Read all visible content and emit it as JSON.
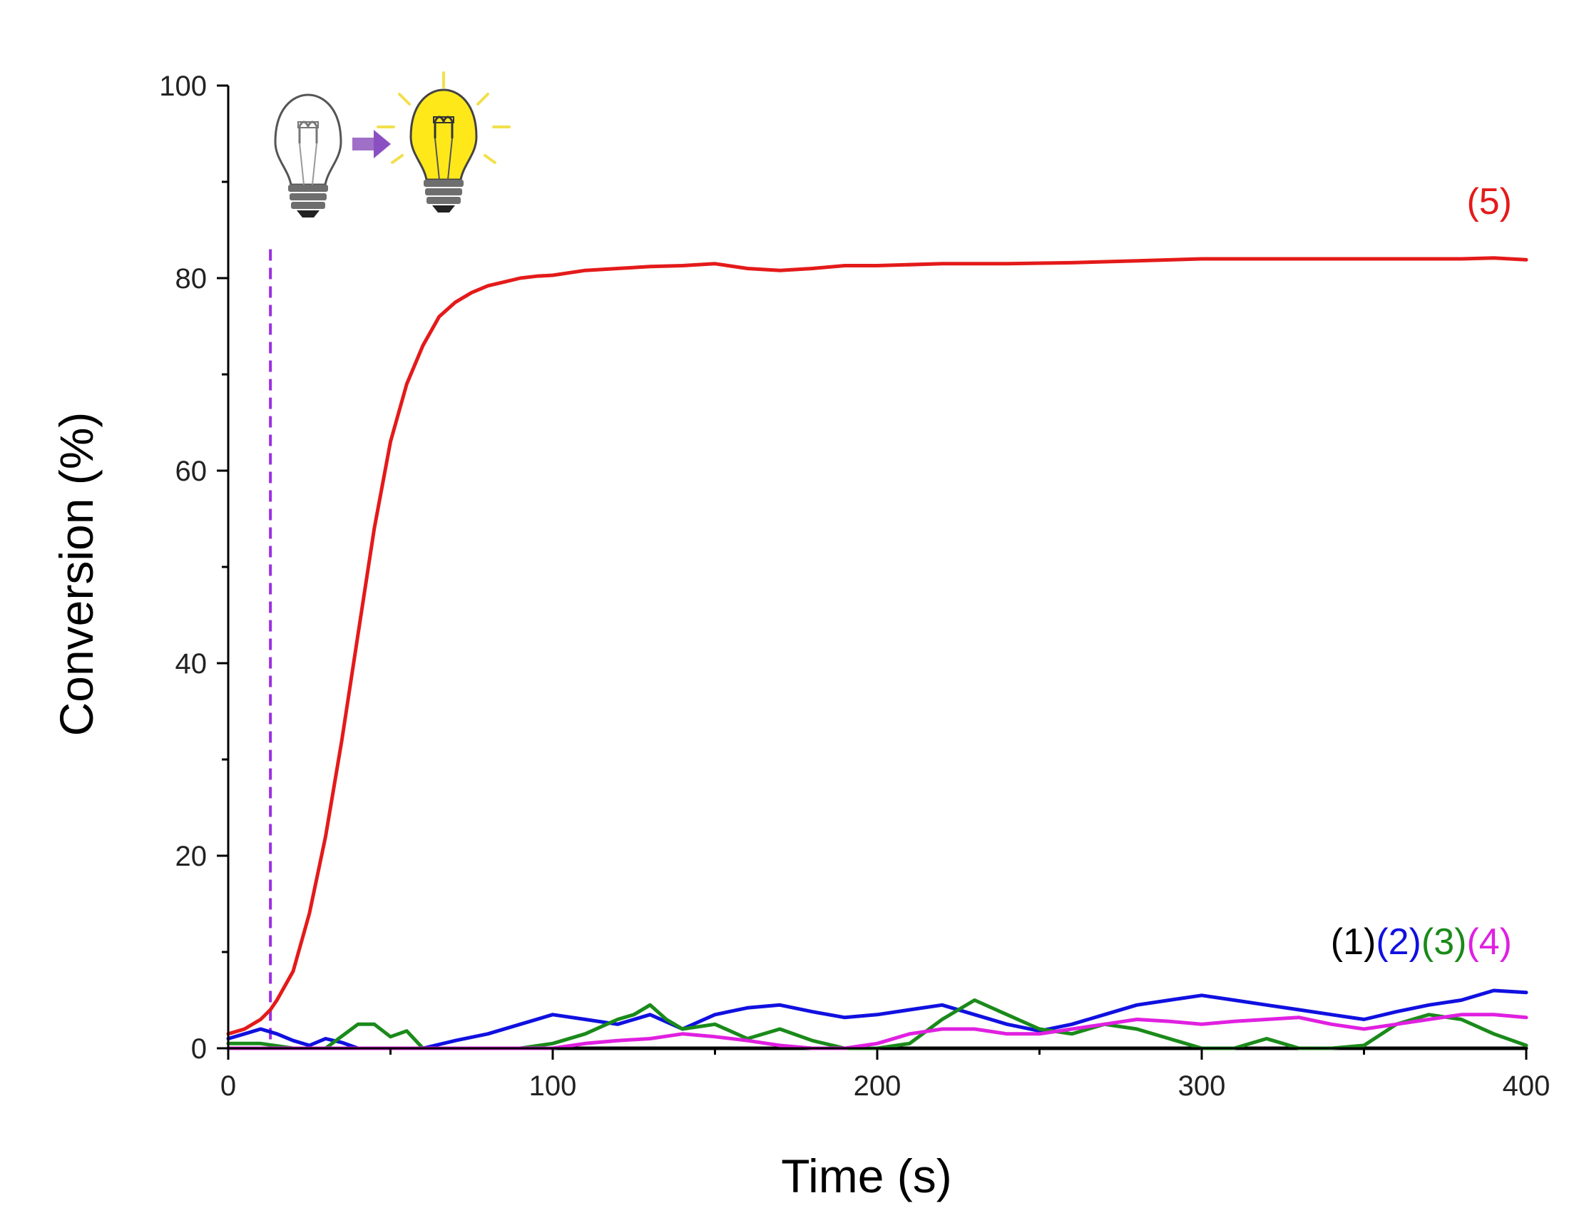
{
  "chart_data": {
    "type": "line",
    "xlabel": "Time (s)",
    "ylabel": "Conversion (%)",
    "xlim": [
      0,
      400
    ],
    "ylim": [
      0,
      100
    ],
    "x_ticks": [
      0,
      100,
      200,
      300,
      400
    ],
    "y_ticks": [
      0,
      20,
      40,
      60,
      80,
      100
    ],
    "grid": false,
    "light_on_time": 13,
    "light_on_line_color": "#9b30e0",
    "annotation_icons": [
      "light-bulb-off-icon",
      "arrow-right-icon",
      "light-bulb-on-icon"
    ],
    "series": [
      {
        "name": "(1)",
        "color": "#000000",
        "x": [
          0,
          100,
          200,
          300,
          400
        ],
        "values": [
          0,
          0,
          0,
          0,
          0
        ]
      },
      {
        "name": "(2)",
        "color": "#1010e0",
        "x": [
          0,
          5,
          10,
          15,
          20,
          25,
          30,
          35,
          40,
          50,
          60,
          70,
          80,
          90,
          100,
          110,
          120,
          130,
          140,
          150,
          160,
          170,
          180,
          190,
          200,
          210,
          220,
          230,
          240,
          250,
          260,
          270,
          280,
          290,
          300,
          310,
          320,
          330,
          340,
          350,
          360,
          370,
          380,
          390,
          400
        ],
        "values": [
          1.0,
          1.5,
          2.0,
          1.5,
          0.8,
          0.3,
          1.0,
          0.6,
          0.0,
          0.0,
          0.0,
          0.8,
          1.5,
          2.5,
          3.5,
          3.0,
          2.5,
          3.5,
          2.0,
          3.5,
          4.2,
          4.5,
          3.8,
          3.2,
          3.5,
          4.0,
          4.5,
          3.5,
          2.5,
          1.8,
          2.5,
          3.5,
          4.5,
          5.0,
          5.5,
          5.0,
          4.5,
          4.0,
          3.5,
          3.0,
          3.8,
          4.5,
          5.0,
          6.0,
          5.8
        ]
      },
      {
        "name": "(3)",
        "color": "#1a8a1a",
        "x": [
          0,
          10,
          20,
          30,
          40,
          45,
          50,
          55,
          60,
          70,
          80,
          90,
          100,
          110,
          120,
          125,
          130,
          135,
          140,
          150,
          160,
          170,
          180,
          190,
          200,
          210,
          220,
          230,
          240,
          250,
          260,
          270,
          280,
          290,
          300,
          310,
          320,
          330,
          340,
          350,
          360,
          370,
          380,
          390,
          400
        ],
        "values": [
          0.5,
          0.5,
          0.0,
          0.0,
          2.5,
          2.5,
          1.2,
          1.8,
          0.0,
          0.0,
          0.0,
          0.0,
          0.5,
          1.5,
          3.0,
          3.5,
          4.5,
          3.0,
          2.0,
          2.5,
          1.0,
          2.0,
          0.8,
          0.0,
          0.0,
          0.5,
          3.0,
          5.0,
          3.5,
          2.0,
          1.5,
          2.5,
          2.0,
          1.0,
          0.0,
          0.0,
          1.0,
          0.0,
          0.0,
          0.3,
          2.5,
          3.5,
          3.0,
          1.5,
          0.3
        ]
      },
      {
        "name": "(4)",
        "color": "#e020e0",
        "x": [
          0,
          100,
          110,
          120,
          130,
          140,
          150,
          160,
          170,
          180,
          190,
          200,
          210,
          220,
          230,
          240,
          250,
          260,
          270,
          280,
          290,
          300,
          310,
          320,
          330,
          340,
          350,
          360,
          370,
          380,
          390,
          400
        ],
        "values": [
          0,
          0,
          0.5,
          0.8,
          1.0,
          1.5,
          1.2,
          0.8,
          0.3,
          0.0,
          0.0,
          0.5,
          1.5,
          2.0,
          2.0,
          1.5,
          1.5,
          2.0,
          2.5,
          3.0,
          2.8,
          2.5,
          2.8,
          3.0,
          3.2,
          2.5,
          2.0,
          2.5,
          3.0,
          3.5,
          3.5,
          3.2
        ]
      },
      {
        "name": "(5)",
        "color": "#e41a1a",
        "x": [
          0,
          5,
          10,
          13,
          15,
          20,
          25,
          30,
          35,
          40,
          45,
          50,
          55,
          60,
          65,
          70,
          75,
          80,
          85,
          90,
          95,
          100,
          110,
          120,
          130,
          140,
          150,
          160,
          170,
          180,
          190,
          200,
          220,
          240,
          260,
          280,
          300,
          320,
          340,
          360,
          380,
          390,
          400
        ],
        "values": [
          1.5,
          2.0,
          3.0,
          4.0,
          5.0,
          8.0,
          14.0,
          22.0,
          32.0,
          43.0,
          54.0,
          63.0,
          69.0,
          73.0,
          76.0,
          77.5,
          78.5,
          79.2,
          79.6,
          80.0,
          80.2,
          80.3,
          80.8,
          81.0,
          81.2,
          81.3,
          81.5,
          81.0,
          80.8,
          81.0,
          81.3,
          81.3,
          81.5,
          81.5,
          81.6,
          81.8,
          82.0,
          82.0,
          82.0,
          82.0,
          82.0,
          82.1,
          81.9
        ]
      }
    ]
  }
}
